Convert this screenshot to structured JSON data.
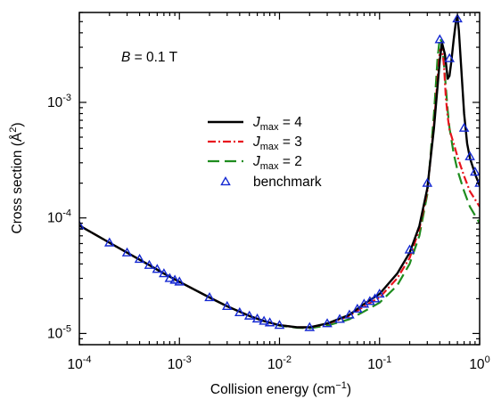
{
  "chart_data": {
    "type": "line",
    "xlabel": {
      "main": "Collision energy (cm",
      "sup": "−1",
      "tail": ")"
    },
    "ylabel": {
      "main": "Cross section (Å",
      "sup": "2",
      "tail": ")"
    },
    "annotation": {
      "italic": "B",
      "text": " = 0.1 T"
    },
    "x_scale": "log",
    "y_scale": "log",
    "xlim": [
      0.0001,
      1
    ],
    "ylim": [
      8e-06,
      0.006
    ],
    "x_ticks": [
      {
        "value": 0.0001,
        "base": "10",
        "exp": "-4"
      },
      {
        "value": 0.001,
        "base": "10",
        "exp": "-3"
      },
      {
        "value": 0.01,
        "base": "10",
        "exp": "-2"
      },
      {
        "value": 0.1,
        "base": "10",
        "exp": "-1"
      },
      {
        "value": 1,
        "base": "10",
        "exp": "0"
      }
    ],
    "y_ticks": [
      {
        "value": 1e-05,
        "base": "10",
        "exp": "-5"
      },
      {
        "value": 0.0001,
        "base": "10",
        "exp": "-4"
      },
      {
        "value": 0.001,
        "base": "10",
        "exp": "-3"
      }
    ],
    "legend": {
      "position": "center-left"
    },
    "series": [
      {
        "name": "J_max = 4",
        "legend_sym": "J",
        "legend_sub": "max",
        "legend_rest": " = 4",
        "color": "#000000",
        "dash": "",
        "width": 2.4,
        "x": [
          0.0001,
          0.0002,
          0.0003,
          0.0005,
          0.0007,
          0.001,
          0.002,
          0.003,
          0.005,
          0.007,
          0.01,
          0.015,
          0.02,
          0.03,
          0.05,
          0.07,
          0.1,
          0.15,
          0.2,
          0.25,
          0.3,
          0.35,
          0.4,
          0.42,
          0.45,
          0.48,
          0.5,
          0.52,
          0.55,
          0.58,
          0.6,
          0.62,
          0.65,
          0.7,
          0.75,
          0.8,
          0.9,
          1.0
        ],
        "y": [
          8.6e-05,
          6.1e-05,
          5e-05,
          3.9e-05,
          3.3e-05,
          2.8e-05,
          2.05e-05,
          1.72e-05,
          1.42e-05,
          1.28e-05,
          1.18e-05,
          1.13e-05,
          1.13e-05,
          1.22e-05,
          1.45e-05,
          1.8e-05,
          2.2e-05,
          3.3e-05,
          5e-05,
          8.5e-05,
          0.00018,
          0.0006,
          0.0023,
          0.0033,
          0.0026,
          0.0016,
          0.0017,
          0.0022,
          0.0035,
          0.005,
          0.0055,
          0.0042,
          0.0022,
          0.0008,
          0.00044,
          0.00033,
          0.00024,
          0.00019
        ]
      },
      {
        "name": "J_max = 3",
        "legend_sym": "J",
        "legend_sub": "max",
        "legend_rest": " = 3",
        "color": "#e8141e",
        "dash": "9,3,2,3",
        "width": 2.2,
        "x": [
          0.0001,
          0.0002,
          0.0003,
          0.0005,
          0.0007,
          0.001,
          0.002,
          0.003,
          0.005,
          0.007,
          0.01,
          0.015,
          0.02,
          0.03,
          0.05,
          0.07,
          0.1,
          0.15,
          0.2,
          0.25,
          0.3,
          0.35,
          0.38,
          0.4,
          0.42,
          0.44,
          0.46,
          0.48,
          0.5,
          0.55,
          0.6,
          0.7,
          0.8,
          1.0
        ],
        "y": [
          8.6e-05,
          6.1e-05,
          5e-05,
          3.9e-05,
          3.3e-05,
          2.8e-05,
          2.05e-05,
          1.72e-05,
          1.42e-05,
          1.28e-05,
          1.18e-05,
          1.13e-05,
          1.13e-05,
          1.21e-05,
          1.42e-05,
          1.72e-05,
          2.05e-05,
          3e-05,
          4.5e-05,
          8e-05,
          0.00017,
          0.00065,
          0.0016,
          0.0028,
          0.003,
          0.0021,
          0.0011,
          0.00075,
          0.00058,
          0.00044,
          0.00034,
          0.00023,
          0.00017,
          0.000125
        ]
      },
      {
        "name": "J_max = 2",
        "legend_sym": "J",
        "legend_sub": "max",
        "legend_rest": " = 2",
        "color": "#1e8c1e",
        "dash": "13,6",
        "width": 2.2,
        "x": [
          0.0001,
          0.0002,
          0.0003,
          0.0005,
          0.0007,
          0.001,
          0.002,
          0.003,
          0.005,
          0.007,
          0.01,
          0.015,
          0.02,
          0.03,
          0.05,
          0.07,
          0.1,
          0.15,
          0.2,
          0.25,
          0.3,
          0.35,
          0.38,
          0.4,
          0.42,
          0.45,
          0.48,
          0.5,
          0.55,
          0.6,
          0.7,
          0.8,
          1.0
        ],
        "y": [
          8.6e-05,
          6.1e-05,
          5e-05,
          3.9e-05,
          3.3e-05,
          2.8e-05,
          2.05e-05,
          1.72e-05,
          1.42e-05,
          1.28e-05,
          1.17e-05,
          1.12e-05,
          1.11e-05,
          1.17e-05,
          1.33e-05,
          1.55e-05,
          1.85e-05,
          2.6e-05,
          4e-05,
          7e-05,
          0.00016,
          0.0008,
          0.0024,
          0.0036,
          0.0033,
          0.0017,
          0.00085,
          0.0006,
          0.00036,
          0.00026,
          0.00017,
          0.000125,
          9e-05
        ]
      }
    ],
    "benchmark": {
      "name": "benchmark",
      "color": "#1428d2",
      "x": [
        0.0001,
        0.0002,
        0.0003,
        0.0004,
        0.0005,
        0.0006,
        0.0007,
        0.0008,
        0.0009,
        0.001,
        0.002,
        0.003,
        0.004,
        0.005,
        0.006,
        0.007,
        0.008,
        0.01,
        0.02,
        0.03,
        0.04,
        0.05,
        0.06,
        0.07,
        0.08,
        0.09,
        0.1,
        0.2,
        0.3,
        0.4,
        0.5,
        0.6,
        0.7,
        0.8,
        0.9,
        1.0
      ],
      "y": [
        8.6e-05,
        6.1e-05,
        5e-05,
        4.4e-05,
        3.9e-05,
        3.6e-05,
        3.3e-05,
        3e-05,
        2.9e-05,
        2.8e-05,
        2.05e-05,
        1.72e-05,
        1.52e-05,
        1.42e-05,
        1.34e-05,
        1.28e-05,
        1.24e-05,
        1.18e-05,
        1.13e-05,
        1.22e-05,
        1.33e-05,
        1.45e-05,
        1.63e-05,
        1.8e-05,
        1.9e-05,
        2e-05,
        2.2e-05,
        5.3e-05,
        0.0002,
        0.0035,
        0.0024,
        0.0053,
        0.0006,
        0.00034,
        0.00025,
        0.0002
      ]
    }
  }
}
